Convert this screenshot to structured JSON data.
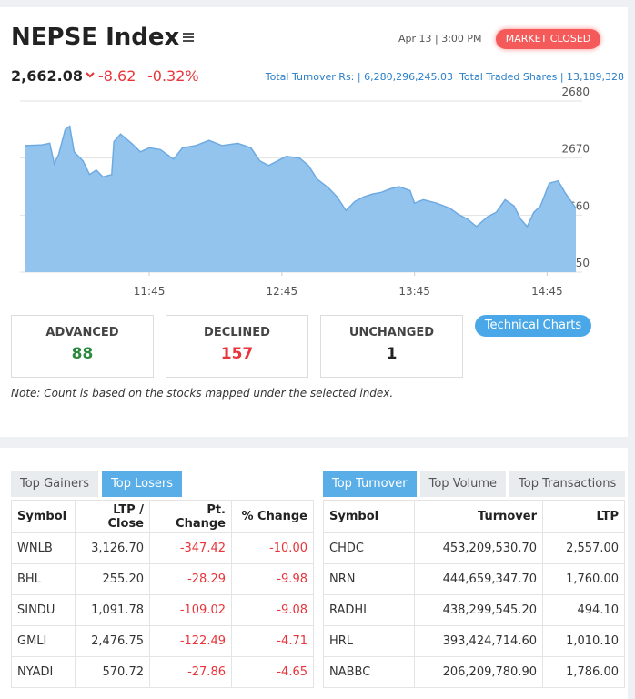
{
  "header": {
    "title": "NEPSE Index",
    "date": "Apr 13 | 3:00 PM",
    "status": "MARKET CLOSED",
    "index_value": "2,662.08",
    "change": "-8.62",
    "percent_change": "-0.32%",
    "turnover": "Total Turnover Rs: | 6,280,296,245.03",
    "traded_shares": "Total Traded Shares | 13,189,328"
  },
  "chart_data": {
    "type": "area",
    "color": "#92c4ee",
    "line_color": "#6eaae2",
    "grid": true,
    "x": [
      "10:49",
      "10:56",
      "11:00",
      "11:02",
      "11:04",
      "11:07",
      "11:09",
      "11:11",
      "11:15",
      "11:18",
      "11:21",
      "11:24",
      "11:28",
      "11:29",
      "11:32",
      "11:37",
      "11:41",
      "11:45",
      "11:50",
      "11:56",
      "12:00",
      "12:06",
      "12:12",
      "12:18",
      "12:25",
      "12:31",
      "12:35",
      "12:39",
      "12:43",
      "12:47",
      "12:53",
      "12:57",
      "13:01",
      "13:06",
      "13:10",
      "13:14",
      "13:18",
      "13:22",
      "13:26",
      "13:30",
      "13:34",
      "13:38",
      "13:43",
      "13:45",
      "13:49",
      "13:55",
      "14:01",
      "14:05",
      "14:09",
      "14:13",
      "14:18",
      "14:22",
      "14:26",
      "14:30",
      "14:33",
      "14:36",
      "14:39",
      "14:42",
      "14:46",
      "14:50",
      "14:53",
      "14:58"
    ],
    "values": [
      2672.2,
      2672.3,
      2672.6,
      2669.0,
      2670.6,
      2675.0,
      2675.6,
      2671.1,
      2669.5,
      2667.1,
      2667.9,
      2666.7,
      2667.1,
      2672.9,
      2674.2,
      2672.6,
      2671.1,
      2671.8,
      2671.5,
      2669.8,
      2671.8,
      2672.2,
      2673.1,
      2672.2,
      2672.6,
      2671.8,
      2669.5,
      2668.7,
      2669.5,
      2670.3,
      2670.0,
      2668.7,
      2666.3,
      2664.8,
      2663.2,
      2660.8,
      2662.4,
      2663.2,
      2663.7,
      2664.0,
      2664.6,
      2665.0,
      2664.3,
      2662.1,
      2662.7,
      2662.1,
      2661.2,
      2660.1,
      2659.3,
      2658.0,
      2659.7,
      2660.5,
      2662.7,
      2661.6,
      2659.3,
      2658.0,
      2660.5,
      2661.6,
      2665.6,
      2666.0,
      2664.0,
      2661.2
    ],
    "xlim": [
      "10:49",
      "14:58"
    ],
    "xticks": [
      "11:45",
      "12:45",
      "13:45",
      "14:45"
    ],
    "ylim": [
      2650,
      2680
    ],
    "yticks": [
      2650,
      2660,
      2670,
      2680
    ]
  },
  "stats": [
    {
      "label": "ADVANCED",
      "value": "88",
      "color": "#2b8a3e"
    },
    {
      "label": "DECLINED",
      "value": "157",
      "color": "#e8343a"
    },
    {
      "label": "UNCHANGED",
      "value": "1",
      "color": "#222222"
    }
  ],
  "button": "Technical Charts",
  "note": "Note: Count is based on the stocks mapped under the selected index.",
  "left_panel": {
    "tabs": [
      {
        "label": "Top Gainers",
        "active": false
      },
      {
        "label": "Top Losers",
        "active": true
      }
    ],
    "columns": [
      "Symbol",
      "LTP / Close",
      "Pt. Change",
      "% Change"
    ],
    "rows": [
      [
        "WNLB",
        "3,126.70",
        "-347.42",
        "-10.00"
      ],
      [
        "BHL",
        "255.20",
        "-28.29",
        "-9.98"
      ],
      [
        "SINDU",
        "1,091.78",
        "-109.02",
        "-9.08"
      ],
      [
        "GMLI",
        "2,476.75",
        "-122.49",
        "-4.71"
      ],
      [
        "NYADI",
        "570.72",
        "-27.86",
        "-4.65"
      ]
    ]
  },
  "right_panel": {
    "tabs": [
      {
        "label": "Top Turnover",
        "active": true
      },
      {
        "label": "Top Volume",
        "active": false
      },
      {
        "label": "Top Transactions",
        "active": false
      }
    ],
    "columns": [
      "Symbol",
      "Turnover",
      "LTP"
    ],
    "rows": [
      [
        "CHDC",
        "453,209,530.70",
        "2,557.00"
      ],
      [
        "NRN",
        "444,659,347.70",
        "1,760.00"
      ],
      [
        "RADHI",
        "438,299,545.20",
        "494.10"
      ],
      [
        "HRL",
        "393,424,714.60",
        "1,010.10"
      ],
      [
        "NABBC",
        "206,209,780.90",
        "1,786.00"
      ]
    ]
  }
}
